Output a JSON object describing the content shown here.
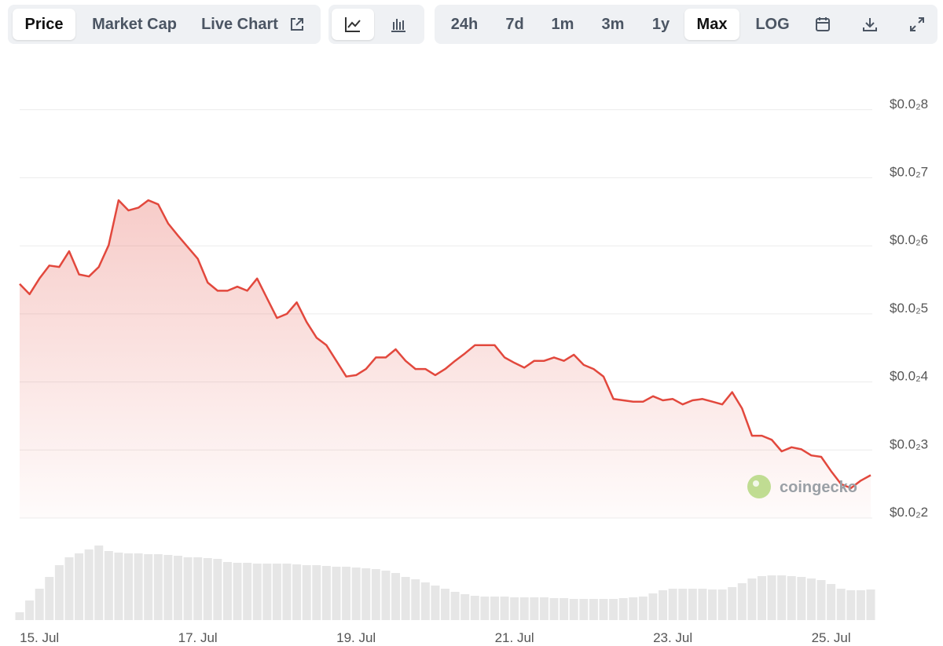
{
  "toolbar": {
    "tabs": [
      "Price",
      "Market Cap",
      "Live Chart"
    ],
    "ranges": [
      "24h",
      "7d",
      "1m",
      "3m",
      "1y",
      "Max",
      "LOG"
    ]
  },
  "watermark": "coingecko",
  "chart_data": {
    "type": "line",
    "categories": [
      null,
      null,
      "15. Jul",
      null,
      null,
      null,
      null,
      null,
      null,
      null,
      null,
      null,
      null,
      null,
      null,
      null,
      null,
      null,
      "17. Jul",
      null,
      null,
      null,
      null,
      null,
      null,
      null,
      null,
      null,
      null,
      null,
      null,
      null,
      null,
      null,
      "19. Jul",
      null,
      null,
      null,
      null,
      null,
      null,
      null,
      null,
      null,
      null,
      null,
      null,
      null,
      null,
      null,
      "21. Jul",
      null,
      null,
      null,
      null,
      null,
      null,
      null,
      null,
      null,
      null,
      null,
      null,
      null,
      null,
      null,
      "23. Jul",
      null,
      null,
      null,
      null,
      null,
      null,
      null,
      null,
      null,
      null,
      null,
      null,
      null,
      null,
      null,
      "25. Jul",
      null,
      null,
      null,
      null
    ],
    "series": [
      {
        "name": "Price",
        "color": "#e2483d",
        "values": [
          0.00544,
          0.00529,
          0.00552,
          0.00571,
          0.00569,
          0.00592,
          0.00558,
          0.00555,
          0.00569,
          0.00601,
          0.00667,
          0.00652,
          0.00656,
          0.00667,
          0.00661,
          0.00633,
          0.00615,
          0.00598,
          0.00581,
          0.00546,
          0.00534,
          0.00534,
          0.0054,
          0.00534,
          0.00552,
          0.00523,
          0.00494,
          0.005,
          0.00517,
          0.00488,
          0.00465,
          0.00454,
          0.00431,
          0.00408,
          0.0041,
          0.00419,
          0.00436,
          0.00436,
          0.00448,
          0.00431,
          0.00419,
          0.00419,
          0.0041,
          0.00419,
          0.00431,
          0.00442,
          0.00454,
          0.00454,
          0.00454,
          0.00436,
          0.00428,
          0.00421,
          0.00431,
          0.00431,
          0.00436,
          0.00431,
          0.0044,
          0.00425,
          0.00419,
          0.00408,
          0.00375,
          0.00373,
          0.00371,
          0.00371,
          0.00379,
          0.00373,
          0.00375,
          0.00367,
          0.00373,
          0.00375,
          0.00371,
          0.00367,
          0.00385,
          0.00361,
          0.00321,
          0.00321,
          0.00315,
          0.00298,
          0.00304,
          0.00301,
          0.00292,
          0.0029,
          0.00269,
          0.0025,
          0.00244,
          0.00255,
          0.00263
        ]
      }
    ],
    "ylim": [
      0.002,
      0.0085
    ],
    "yticks": [
      {
        "value": 0.002,
        "label": "$0.0₂2"
      },
      {
        "value": 0.003,
        "label": "$0.0₂3"
      },
      {
        "value": 0.004,
        "label": "$0.0₂4"
      },
      {
        "value": 0.005,
        "label": "$0.0₂5"
      },
      {
        "value": 0.006,
        "label": "$0.0₂6"
      },
      {
        "value": 0.007,
        "label": "$0.0₂7"
      },
      {
        "value": 0.008,
        "label": "$0.0₂8"
      }
    ],
    "grid": true,
    "volume": {
      "color": "#e6e6e6",
      "ylim": [
        0,
        100
      ],
      "values": [
        10,
        25,
        40,
        55,
        70,
        80,
        85,
        90,
        95,
        88,
        86,
        85,
        85,
        84,
        84,
        83,
        82,
        80,
        80,
        79,
        78,
        74,
        73,
        73,
        72,
        72,
        72,
        72,
        71,
        70,
        70,
        69,
        68,
        68,
        67,
        66,
        65,
        63,
        60,
        55,
        52,
        48,
        44,
        40,
        36,
        33,
        31,
        30,
        30,
        30,
        29,
        29,
        29,
        29,
        28,
        28,
        27,
        27,
        27,
        27,
        27,
        28,
        29,
        30,
        34,
        38,
        40,
        40,
        40,
        40,
        39,
        39,
        42,
        47,
        53,
        56,
        57,
        57,
        56,
        55,
        53,
        51,
        46,
        40,
        38,
        38,
        39
      ]
    }
  }
}
